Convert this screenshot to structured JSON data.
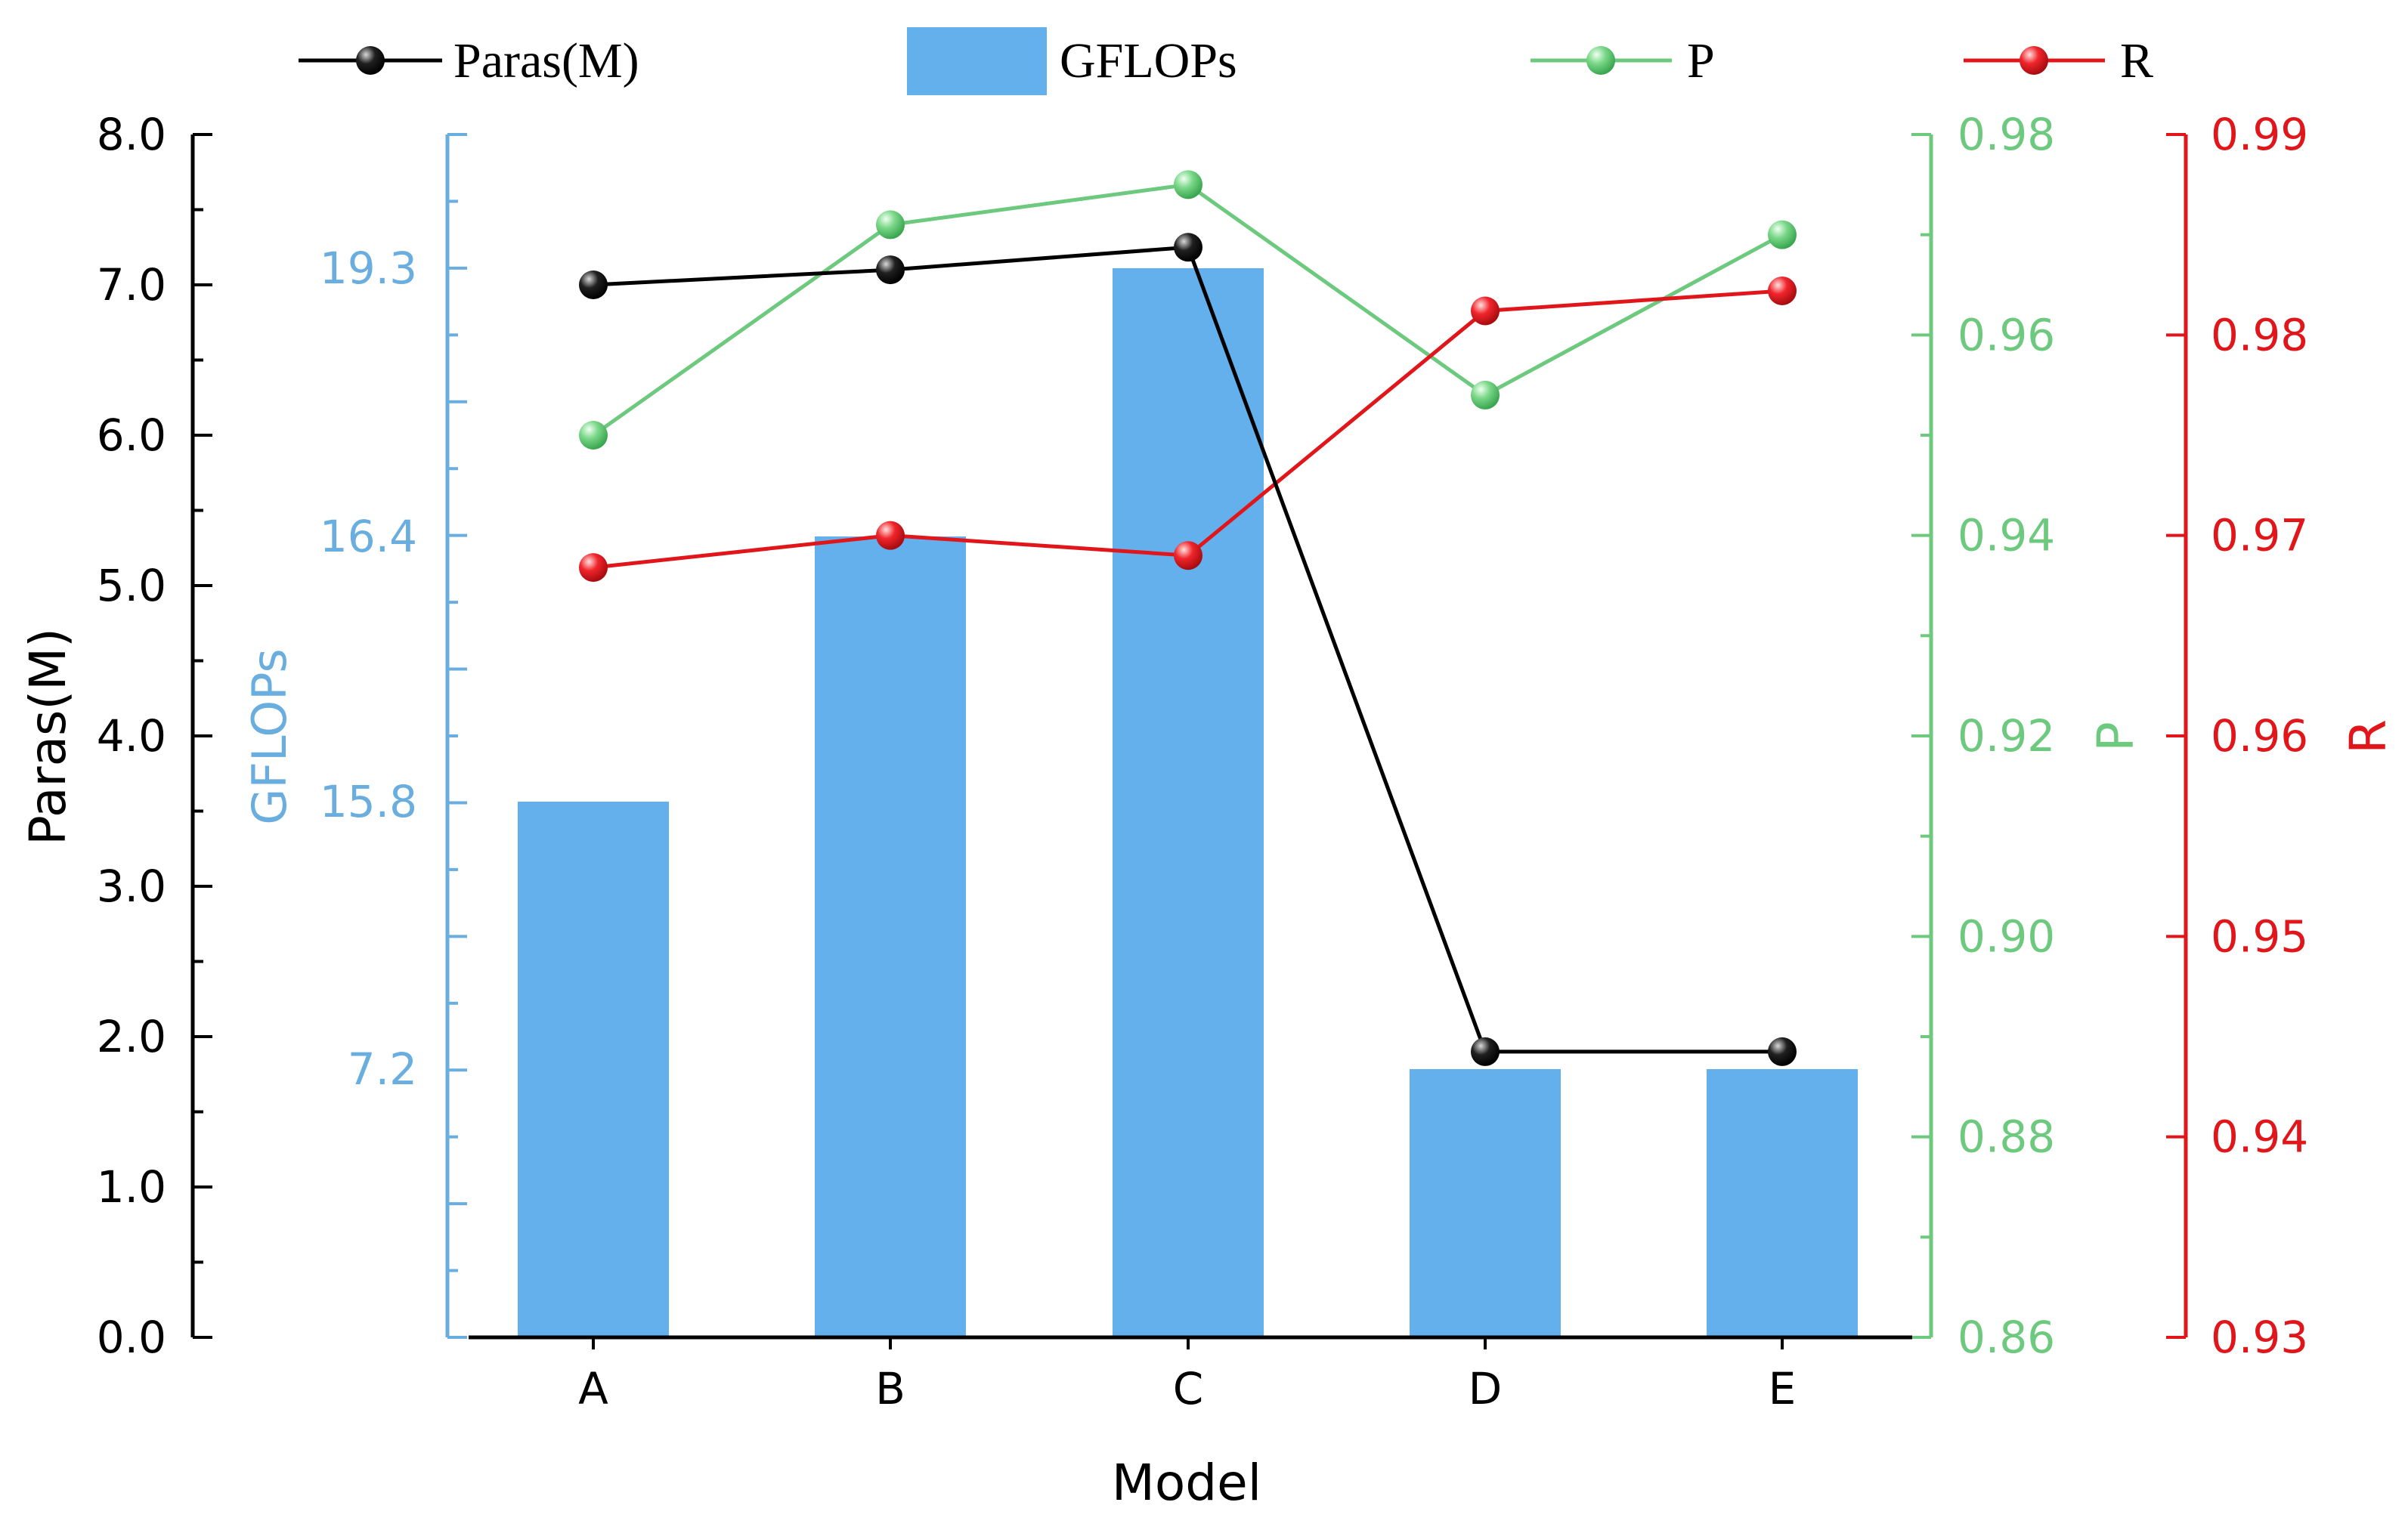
{
  "chart_data": {
    "type": "bar",
    "title": "",
    "xlabel": "Model",
    "categories": [
      "A",
      "B",
      "C",
      "D",
      "E"
    ],
    "legend": {
      "placement": "top",
      "entries": [
        "Paras(M)",
        "GFLOPs",
        "P",
        "R"
      ]
    },
    "axes": {
      "paras": {
        "label": "Paras(M)",
        "range": [
          0,
          8
        ],
        "ticks": [
          "0.0",
          "1.0",
          "2.0",
          "3.0",
          "4.0",
          "5.0",
          "6.0",
          "7.0",
          "8.0"
        ],
        "color": "#000000"
      },
      "gflops": {
        "label": "GFLOPs",
        "ticks": [
          "7.2",
          "15.8",
          "16.4",
          "19.3"
        ],
        "color": "#6aaee0"
      },
      "p": {
        "label": "P",
        "range": [
          0.86,
          0.98
        ],
        "ticks": [
          "0.86",
          "0.88",
          "0.90",
          "0.92",
          "0.94",
          "0.96",
          "0.98"
        ],
        "color": "#6cc97e"
      },
      "r": {
        "label": "R",
        "range": [
          0.93,
          0.99
        ],
        "ticks": [
          "0.93",
          "0.94",
          "0.95",
          "0.96",
          "0.97",
          "0.98",
          "0.99"
        ],
        "color": "#e0161b"
      }
    },
    "series": [
      {
        "name": "Paras(M)",
        "type": "line",
        "axis": "paras",
        "color": "#000000",
        "values": [
          7.0,
          7.1,
          7.25,
          1.9,
          1.9
        ]
      },
      {
        "name": "GFLOPs",
        "type": "bar",
        "axis": "gflops",
        "color": "#63b0ec",
        "values": [
          15.8,
          16.4,
          19.3,
          7.2,
          7.2
        ]
      },
      {
        "name": "P",
        "type": "line",
        "axis": "p",
        "color": "#6cc97e",
        "values": [
          0.95,
          0.971,
          0.975,
          0.954,
          0.97
        ]
      },
      {
        "name": "R",
        "type": "line",
        "axis": "r",
        "color": "#e0161b",
        "values": [
          0.9684,
          0.97,
          0.969,
          0.9812,
          0.9822
        ]
      }
    ]
  }
}
